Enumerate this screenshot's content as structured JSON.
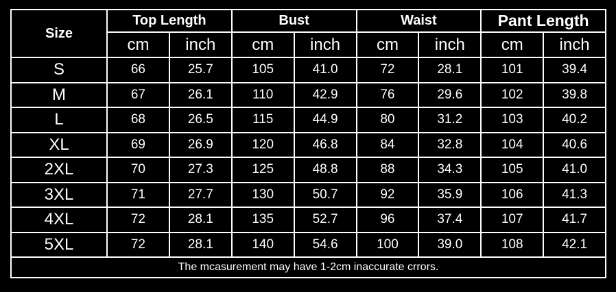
{
  "header": {
    "size_label": "Size",
    "groups": [
      "Top Length",
      "Bust",
      "Waist",
      "Pant Length"
    ],
    "units": [
      "cm",
      "inch"
    ]
  },
  "rows": [
    {
      "size": "S",
      "values": [
        "66",
        "25.7",
        "105",
        "41.0",
        "72",
        "28.1",
        "101",
        "39.4"
      ]
    },
    {
      "size": "M",
      "values": [
        "67",
        "26.1",
        "110",
        "42.9",
        "76",
        "29.6",
        "102",
        "39.8"
      ]
    },
    {
      "size": "L",
      "values": [
        "68",
        "26.5",
        "115",
        "44.9",
        "80",
        "31.2",
        "103",
        "40.2"
      ]
    },
    {
      "size": "XL",
      "values": [
        "69",
        "26.9",
        "120",
        "46.8",
        "84",
        "32.8",
        "104",
        "40.6"
      ]
    },
    {
      "size": "2XL",
      "values": [
        "70",
        "27.3",
        "125",
        "48.8",
        "88",
        "34.3",
        "105",
        "41.0"
      ]
    },
    {
      "size": "3XL",
      "values": [
        "71",
        "27.7",
        "130",
        "50.7",
        "92",
        "35.9",
        "106",
        "41.3"
      ]
    },
    {
      "size": "4XL",
      "values": [
        "72",
        "28.1",
        "135",
        "52.7",
        "96",
        "37.4",
        "107",
        "41.7"
      ]
    },
    {
      "size": "5XL",
      "values": [
        "72",
        "28.1",
        "140",
        "54.6",
        "100",
        "39.0",
        "108",
        "42.1"
      ]
    }
  ],
  "footnote": "The mcasurement may have 1-2cm inaccurate crrors.",
  "colors": {
    "background": "#000000",
    "text": "#ffffff",
    "border": "#ffffff"
  }
}
